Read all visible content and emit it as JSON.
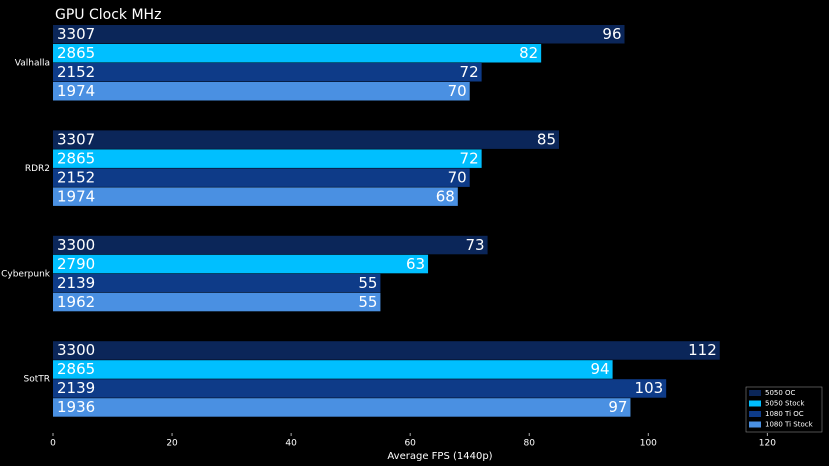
{
  "chart_data": {
    "type": "hbar",
    "title": "GPU Clock MHz",
    "x_label": "Average FPS (1440p)",
    "categories": [
      "Valhalla",
      "RDR2",
      "Cyberpunk",
      "SotTR"
    ],
    "series": [
      {
        "name": "5050 OC",
        "color": "#0b2659",
        "values": [
          96,
          85,
          73,
          112
        ],
        "clocks": [
          "3307",
          "3307",
          "3300",
          "3300"
        ]
      },
      {
        "name": "5050 Stock",
        "color": "#00bfff",
        "values": [
          82,
          72,
          63,
          94
        ],
        "clocks": [
          "2865",
          "2865",
          "2790",
          "2865"
        ]
      },
      {
        "name": "1080 Ti OC",
        "color": "#0e3b88",
        "values": [
          72,
          70,
          55,
          103
        ],
        "clocks": [
          "2152",
          "2152",
          "2139",
          "2139"
        ]
      },
      {
        "name": "1080 Ti Stock",
        "color": "#4a90e2",
        "values": [
          70,
          68,
          55,
          97
        ],
        "clocks": [
          "1974",
          "1974",
          "1962",
          "1936"
        ]
      }
    ],
    "xlim": [
      0,
      128
    ],
    "xticks": [
      0,
      20,
      40,
      60,
      80,
      100,
      120
    ],
    "grid": false,
    "legend": "lower right"
  }
}
